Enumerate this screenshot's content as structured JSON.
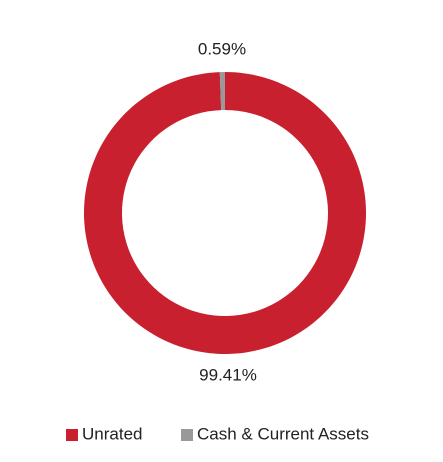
{
  "chart_data": {
    "type": "donut",
    "categories": [
      "Unrated",
      "Cash & Current Assets"
    ],
    "values": [
      99.41,
      0.59
    ],
    "value_labels": [
      "99.41%",
      "0.59%"
    ],
    "colors": [
      "#c8202f",
      "#999999"
    ],
    "legend": "bottom"
  }
}
